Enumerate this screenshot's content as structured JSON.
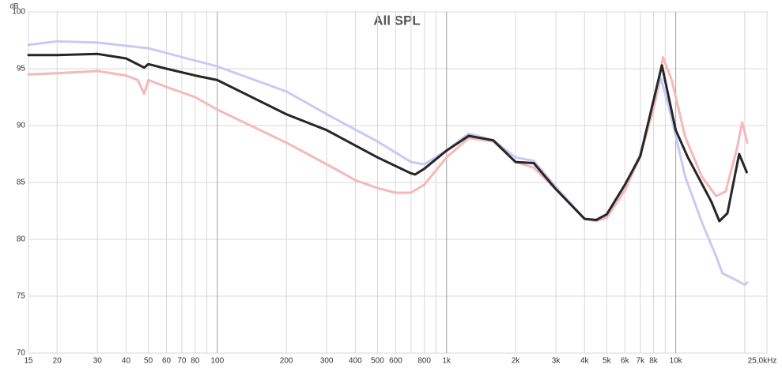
{
  "chart_data": {
    "type": "line",
    "title": "All SPL",
    "ylabel": "dB",
    "log_x": true,
    "grid": true,
    "xlim": [
      15,
      25000
    ],
    "ylim": [
      70,
      100
    ],
    "yticks": [
      70,
      75,
      80,
      85,
      90,
      95,
      100
    ],
    "xticks": [
      15,
      20,
      30,
      40,
      50,
      60,
      70,
      80,
      100,
      200,
      300,
      400,
      500,
      600,
      800,
      {
        "value": 1000,
        "label": "1k"
      },
      {
        "value": 2000,
        "label": "2k"
      },
      {
        "value": 3000,
        "label": "3k"
      },
      {
        "value": 4000,
        "label": "4k"
      },
      {
        "value": 5000,
        "label": "5k"
      },
      {
        "value": 6000,
        "label": "6k"
      },
      {
        "value": 7000,
        "label": "7k"
      },
      {
        "value": 8000,
        "label": "8k"
      },
      {
        "value": 10000,
        "label": "10k"
      },
      {
        "value": 25000,
        "label": "25,0kHz"
      }
    ],
    "xgrid_minor": [
      90,
      700,
      900,
      9000,
      20000
    ],
    "series": [
      {
        "color": "#c9c9f7",
        "x": [
          15,
          20,
          30,
          50,
          100,
          200,
          300,
          500,
          700,
          800,
          1000,
          1250,
          1600,
          2000,
          2400,
          3000,
          4000,
          4500,
          5000,
          6000,
          7000,
          8000,
          8600,
          9500,
          11000,
          13000,
          15000,
          16000,
          18000,
          20000,
          20500
        ],
        "values": [
          97.1,
          97.4,
          97.3,
          96.8,
          95.2,
          93.0,
          91.0,
          88.6,
          86.8,
          86.6,
          87.8,
          89.3,
          88.7,
          87.2,
          86.9,
          84.6,
          81.8,
          81.7,
          82.1,
          84.5,
          87.5,
          91.5,
          94.2,
          91.0,
          85.5,
          81.5,
          78.5,
          77.0,
          76.5,
          76.0,
          76.2
        ]
      },
      {
        "color": "#f6b8b8",
        "x": [
          15,
          20,
          30,
          40,
          45,
          48,
          50,
          60,
          80,
          100,
          200,
          300,
          400,
          500,
          600,
          700,
          800,
          1000,
          1250,
          1600,
          2000,
          2400,
          3000,
          4000,
          4500,
          5000,
          6000,
          7000,
          8000,
          8800,
          9600,
          11000,
          13000,
          15000,
          16500,
          18500,
          19500,
          20500
        ],
        "values": [
          94.5,
          94.6,
          94.8,
          94.4,
          94.0,
          92.8,
          94.0,
          93.4,
          92.5,
          91.4,
          88.5,
          86.6,
          85.2,
          84.5,
          84.1,
          84.1,
          84.8,
          87.2,
          88.9,
          88.6,
          86.8,
          86.3,
          84.4,
          81.8,
          81.6,
          81.9,
          84.3,
          87.3,
          91.5,
          96.0,
          94.0,
          89.0,
          85.5,
          83.8,
          84.2,
          88.0,
          90.3,
          88.5
        ]
      },
      {
        "color": "#262626",
        "x": [
          15,
          20,
          30,
          40,
          48,
          50,
          60,
          80,
          100,
          200,
          300,
          500,
          700,
          730,
          800,
          1000,
          1250,
          1600,
          2000,
          2400,
          3000,
          4000,
          4500,
          5000,
          6000,
          7000,
          8000,
          8700,
          10000,
          11300,
          14300,
          15500,
          16800,
          18900,
          20400
        ],
        "values": [
          96.2,
          96.2,
          96.3,
          95.9,
          95.1,
          95.4,
          95.0,
          94.4,
          94.0,
          91.0,
          89.6,
          87.2,
          85.8,
          85.7,
          86.2,
          87.8,
          89.1,
          88.7,
          86.8,
          86.7,
          84.4,
          81.8,
          81.7,
          82.2,
          84.8,
          87.3,
          92.2,
          95.3,
          89.6,
          87.2,
          83.3,
          81.6,
          82.3,
          87.5,
          85.9
        ]
      }
    ]
  }
}
